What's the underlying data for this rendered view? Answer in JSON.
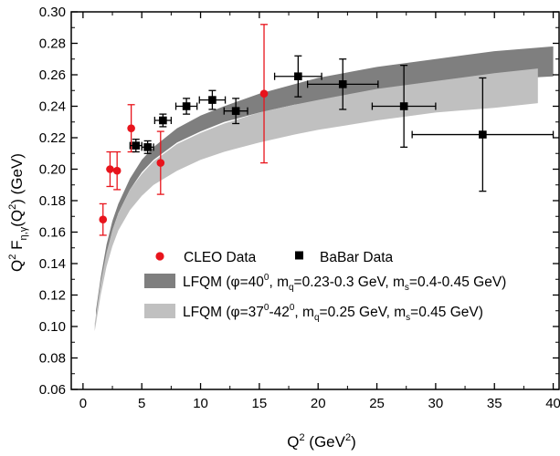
{
  "chart_data": {
    "type": "scatter",
    "xlim": [
      -1,
      40.5
    ],
    "ylim": [
      0.06,
      0.3
    ],
    "x_ticks": [
      0,
      5,
      10,
      15,
      20,
      25,
      30,
      35,
      40
    ],
    "y_ticks": [
      0.06,
      0.08,
      0.1,
      0.12,
      0.14,
      0.16,
      0.18,
      0.2,
      0.22,
      0.24,
      0.26,
      0.28,
      0.3
    ],
    "x_tick_labels": [
      "0",
      "5",
      "10",
      "15",
      "20",
      "25",
      "30",
      "35",
      "40"
    ],
    "y_tick_labels": [
      "0.06",
      "0.08",
      "0.10",
      "0.12",
      "0.14",
      "0.16",
      "0.18",
      "0.20",
      "0.22",
      "0.24",
      "0.26",
      "0.28",
      "0.30"
    ],
    "xlabel": {
      "base": "Q",
      "sup": "2",
      "rest": " (GeV",
      "sup2": "2",
      "close": ")"
    },
    "ylabel": {
      "q": "Q",
      "sup": "2",
      "f": " F",
      "sub": "η,γ",
      "open": "(Q",
      "sup2": "2",
      "rest": ") (GeV)"
    },
    "grid": false,
    "legend_placement": "center-right",
    "colors": {
      "cleo": "#e8141c",
      "babar": "#000000",
      "band_dark": "#7f7f7f",
      "band_light": "#c0c0c0"
    },
    "series": [
      {
        "name": "CLEO Data",
        "marker": "circle",
        "points": [
          {
            "x": 1.7,
            "y": 0.168,
            "yerr": 0.01
          },
          {
            "x": 2.3,
            "y": 0.2,
            "yerr": 0.011
          },
          {
            "x": 2.9,
            "y": 0.199,
            "yerr": 0.012
          },
          {
            "x": 4.1,
            "y": 0.226,
            "yerr": 0.015
          },
          {
            "x": 6.6,
            "y": 0.204,
            "yerr": 0.02
          },
          {
            "x": 15.4,
            "y": 0.248,
            "yerr": 0.044
          }
        ]
      },
      {
        "name": "BaBar Data",
        "marker": "square",
        "points": [
          {
            "x": 4.5,
            "y": 0.215,
            "xerr": 0.5,
            "yerr": 0.004
          },
          {
            "x": 5.5,
            "y": 0.214,
            "xerr": 0.5,
            "yerr": 0.004
          },
          {
            "x": 6.8,
            "y": 0.231,
            "xerr": 0.7,
            "yerr": 0.004
          },
          {
            "x": 8.8,
            "y": 0.24,
            "xerr": 0.9,
            "yerr": 0.005
          },
          {
            "x": 11.0,
            "y": 0.244,
            "xerr": 1.1,
            "yerr": 0.006
          },
          {
            "x": 13.0,
            "y": 0.237,
            "xerr": 1.0,
            "yerr": 0.008
          },
          {
            "x": 18.3,
            "y": 0.259,
            "xerr": 2.0,
            "yerr": 0.013
          },
          {
            "x": 22.1,
            "y": 0.254,
            "xerr": 3.0,
            "yerr": 0.016
          },
          {
            "x": 27.3,
            "y": 0.24,
            "xerr": 2.7,
            "yerr": 0.026
          },
          {
            "x": 34.0,
            "y": 0.222,
            "xerr": 6.0,
            "yerr": 0.036
          }
        ]
      }
    ],
    "bands": [
      {
        "name": "LFQM (φ=40°, mq=0.23-0.3 GeV, ms=0.4-0.45 GeV)",
        "x": [
          1.1,
          1.5,
          2.0,
          2.5,
          3.0,
          4.0,
          5.0,
          6.0,
          8.0,
          10.0,
          12.0,
          15.0,
          18.0,
          20.0,
          25.0,
          30.0,
          35.0,
          40.0
        ],
        "lower": [
          0.105,
          0.126,
          0.146,
          0.161,
          0.172,
          0.187,
          0.198,
          0.206,
          0.217,
          0.224,
          0.23,
          0.236,
          0.241,
          0.243,
          0.249,
          0.253,
          0.257,
          0.259
        ],
        "upper": [
          0.11,
          0.131,
          0.152,
          0.167,
          0.178,
          0.194,
          0.206,
          0.214,
          0.226,
          0.234,
          0.24,
          0.248,
          0.254,
          0.258,
          0.265,
          0.27,
          0.275,
          0.278
        ]
      },
      {
        "name": "LFQM (φ=37°-42°, mq=0.25 GeV, ms=0.45 GeV)",
        "x": [
          1.0,
          1.5,
          2.0,
          2.5,
          3.0,
          4.0,
          5.0,
          6.0,
          8.0,
          10.0,
          12.0,
          15.0,
          18.0,
          20.0,
          25.0,
          30.0,
          35.0,
          38.7
        ],
        "lower": [
          0.097,
          0.12,
          0.138,
          0.151,
          0.161,
          0.174,
          0.183,
          0.19,
          0.199,
          0.206,
          0.211,
          0.217,
          0.222,
          0.225,
          0.231,
          0.236,
          0.239,
          0.242
        ],
        "upper": [
          0.102,
          0.128,
          0.147,
          0.161,
          0.172,
          0.187,
          0.197,
          0.205,
          0.216,
          0.223,
          0.229,
          0.236,
          0.241,
          0.244,
          0.251,
          0.256,
          0.261,
          0.264
        ]
      }
    ],
    "legend": {
      "row1_left": "CLEO Data",
      "row1_right": "BaBar Data",
      "band1": {
        "a": "LFQM (",
        "phi": "φ",
        "b": "=40",
        "b_sup": "0",
        "c": ", m",
        "c_sub": "q",
        "d": "=0.23-0.3 GeV, m",
        "d_sub": "s",
        "e": "=0.4-0.45 GeV)"
      },
      "band2": {
        "a": "LFQM (",
        "phi": "φ",
        "b": "=37",
        "b_sup": "0",
        "b2": "-42",
        "b2_sup": "0",
        "c": ", m",
        "c_sub": "q",
        "d": "=0.25 GeV, m",
        "d_sub": "s",
        "e": "=0.45 GeV)"
      }
    }
  }
}
